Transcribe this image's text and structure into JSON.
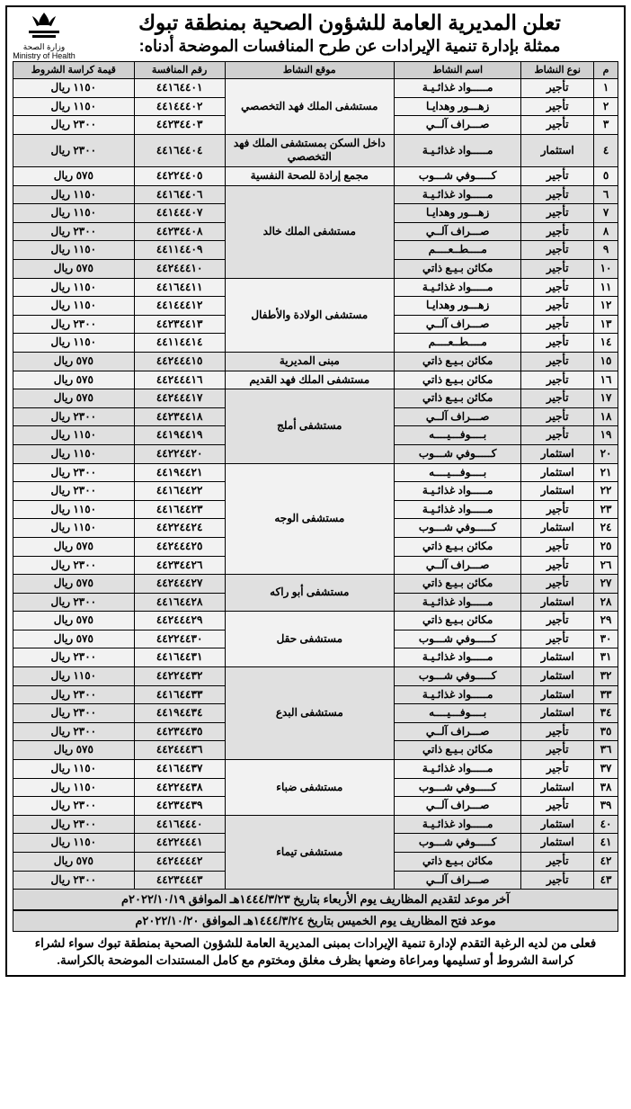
{
  "header": {
    "logo_ar": "وزارة الصحة",
    "logo_en": "Ministry of Health",
    "title1": "تعلن المديرية العامة للشؤون الصحية بمنطقة تبوك",
    "title2": "ممثلة بإدارة تنمية الإيرادات عن طرح المنافسات الموضحة أدناه:"
  },
  "columns": {
    "m": "م",
    "type": "نوع النشاط",
    "activity": "اسم النشاط",
    "location": "موقع النشاط",
    "ref": "رقم المنافسة",
    "value": "قيمة كراسة الشروط"
  },
  "colors": {
    "alt1": "#f2f2f2",
    "alt2": "#e0e0e0"
  },
  "rows": [
    {
      "m": "1",
      "type": "تأجير",
      "activity": "مـــــواد غذائـيـة",
      "ref": "٤٤١٦٤٤٠١",
      "value": "١١٥٠ ريال"
    },
    {
      "m": "2",
      "type": "تأجير",
      "activity": "زهـــور وهدايـا",
      "ref": "٤٤١٤٤٤٠٢",
      "value": "١١٥٠ ريال"
    },
    {
      "m": "3",
      "type": "تأجير",
      "activity": "صـــراف آلــي",
      "ref": "٤٤٢٣٤٤٠٣",
      "value": "٢٣٠٠ ريال"
    },
    {
      "m": "4",
      "type": "استثمار",
      "activity": "مـــــواد غذائـيـة",
      "ref": "٤٤١٦٤٤٠٤",
      "value": "٢٣٠٠ ريال"
    },
    {
      "m": "5",
      "type": "تأجير",
      "activity": "كـــــوفي شـــوب",
      "ref": "٤٤٢٢٤٤٠٥",
      "value": "٥٧٥ ريال"
    },
    {
      "m": "6",
      "type": "تأجير",
      "activity": "مـــــواد غذائـيـة",
      "ref": "٤٤١٦٤٤٠٦",
      "value": "١١٥٠ ريال"
    },
    {
      "m": "7",
      "type": "تأجير",
      "activity": "زهـــور وهدايـا",
      "ref": "٤٤١٤٤٤٠٧",
      "value": "١١٥٠ ريال"
    },
    {
      "m": "8",
      "type": "تأجير",
      "activity": "صـــراف آلــي",
      "ref": "٤٤٢٣٤٤٠٨",
      "value": "٢٣٠٠ ريال"
    },
    {
      "m": "9",
      "type": "تأجير",
      "activity": "مــــطــعــــم",
      "ref": "٤٤١١٤٤٠٩",
      "value": "١١٥٠ ريال"
    },
    {
      "m": "10",
      "type": "تأجير",
      "activity": "مكائن بـيـع ذاتي",
      "ref": "٤٤٢٤٤٤١٠",
      "value": "٥٧٥ ريال"
    },
    {
      "m": "11",
      "type": "تأجير",
      "activity": "مـــــواد غذائـيـة",
      "ref": "٤٤١٦٤٤١١",
      "value": "١١٥٠ ريال"
    },
    {
      "m": "12",
      "type": "تأجير",
      "activity": "زهـــور وهدايـا",
      "ref": "٤٤١٤٤٤١٢",
      "value": "١١٥٠ ريال"
    },
    {
      "m": "13",
      "type": "تأجير",
      "activity": "صـــراف آلــي",
      "ref": "٤٤٢٣٤٤١٣",
      "value": "٢٣٠٠ ريال"
    },
    {
      "m": "14",
      "type": "تأجير",
      "activity": "مــــطــعــــم",
      "ref": "٤٤١١٤٤١٤",
      "value": "١١٥٠ ريال"
    },
    {
      "m": "15",
      "type": "تأجير",
      "activity": "مكائن بـيـع ذاتي",
      "ref": "٤٤٢٤٤٤١٥",
      "value": "٥٧٥ ريال"
    },
    {
      "m": "16",
      "type": "تأجير",
      "activity": "مكائن بـيـع ذاتي",
      "ref": "٤٤٢٤٤٤١٦",
      "value": "٥٧٥ ريال"
    },
    {
      "m": "17",
      "type": "تأجير",
      "activity": "مكائن بـيـع ذاتي",
      "ref": "٤٤٢٤٤٤١٧",
      "value": "٥٧٥ ريال"
    },
    {
      "m": "18",
      "type": "تأجير",
      "activity": "صـــراف آلــي",
      "ref": "٤٤٢٣٤٤١٨",
      "value": "٢٣٠٠ ريال"
    },
    {
      "m": "19",
      "type": "تأجير",
      "activity": "بــــوفـــيــــه",
      "ref": "٤٤١٩٤٤١٩",
      "value": "١١٥٠ ريال"
    },
    {
      "m": "20",
      "type": "استثمار",
      "activity": "كـــــوفي شـــوب",
      "ref": "٤٤٢٢٤٤٢٠",
      "value": "١١٥٠ ريال"
    },
    {
      "m": "21",
      "type": "استثمار",
      "activity": "بــــوفـــيــــه",
      "ref": "٤٤١٩٤٤٢١",
      "value": "٢٣٠٠ ريال"
    },
    {
      "m": "22",
      "type": "استثمار",
      "activity": "مـــــواد غذائـيـة",
      "ref": "٤٤١٦٤٤٢٢",
      "value": "٢٣٠٠ ريال"
    },
    {
      "m": "23",
      "type": "تأجير",
      "activity": "مـــــواد غذائـيـة",
      "ref": "٤٤١٦٤٤٢٣",
      "value": "١١٥٠ ريال"
    },
    {
      "m": "24",
      "type": "استثمار",
      "activity": "كـــــوفي شـــوب",
      "ref": "٤٤٢٢٤٤٢٤",
      "value": "١١٥٠ ريال"
    },
    {
      "m": "25",
      "type": "تأجير",
      "activity": "مكائن بـيـع ذاتي",
      "ref": "٤٤٢٤٤٤٢٥",
      "value": "٥٧٥ ريال"
    },
    {
      "m": "26",
      "type": "تأجير",
      "activity": "صـــراف آلــي",
      "ref": "٤٤٢٣٤٤٢٦",
      "value": "٢٣٠٠ ريال"
    },
    {
      "m": "27",
      "type": "تأجير",
      "activity": "مكائن بـيـع ذاتي",
      "ref": "٤٤٢٤٤٤٢٧",
      "value": "٥٧٥ ريال"
    },
    {
      "m": "28",
      "type": "استثمار",
      "activity": "مـــــواد غذائـيـة",
      "ref": "٤٤١٦٤٤٢٨",
      "value": "٢٣٠٠ ريال"
    },
    {
      "m": "29",
      "type": "تأجير",
      "activity": "مكائن بـيـع ذاتي",
      "ref": "٤٤٢٤٤٤٢٩",
      "value": "٥٧٥ ريال"
    },
    {
      "m": "30",
      "type": "تأجير",
      "activity": "كـــــوفي شـــوب",
      "ref": "٤٤٢٢٤٤٣٠",
      "value": "٥٧٥ ريال"
    },
    {
      "m": "31",
      "type": "استثمار",
      "activity": "مـــــواد غذائـيـة",
      "ref": "٤٤١٦٤٤٣١",
      "value": "٢٣٠٠ ريال"
    },
    {
      "m": "32",
      "type": "استثمار",
      "activity": "كـــــوفي شـــوب",
      "ref": "٤٤٢٢٤٤٣٢",
      "value": "١١٥٠ ريال"
    },
    {
      "m": "33",
      "type": "استثمار",
      "activity": "مـــــواد غذائـيـة",
      "ref": "٤٤١٦٤٤٣٣",
      "value": "٢٣٠٠ ريال"
    },
    {
      "m": "34",
      "type": "استثمار",
      "activity": "بــــوفـــيــــه",
      "ref": "٤٤١٩٤٤٣٤",
      "value": "٢٣٠٠ ريال"
    },
    {
      "m": "35",
      "type": "تأجير",
      "activity": "صـــراف آلــي",
      "ref": "٤٤٢٣٤٤٣٥",
      "value": "٢٣٠٠ ريال"
    },
    {
      "m": "36",
      "type": "تأجير",
      "activity": "مكائن بـيـع ذاتي",
      "ref": "٤٤٢٤٤٤٣٦",
      "value": "٥٧٥ ريال"
    },
    {
      "m": "37",
      "type": "تأجير",
      "activity": "مـــــواد غذائـيـة",
      "ref": "٤٤١٦٤٤٣٧",
      "value": "١١٥٠ ريال"
    },
    {
      "m": "38",
      "type": "استثمار",
      "activity": "كـــــوفي شـــوب",
      "ref": "٤٤٢٢٤٤٣٨",
      "value": "١١٥٠ ريال"
    },
    {
      "m": "39",
      "type": "تأجير",
      "activity": "صـــراف آلــي",
      "ref": "٤٤٢٣٤٤٣٩",
      "value": "٢٣٠٠ ريال"
    },
    {
      "m": "40",
      "type": "استثمار",
      "activity": "مـــــواد غذائـيـة",
      "ref": "٤٤١٦٤٤٤٠",
      "value": "٢٣٠٠ ريال"
    },
    {
      "m": "41",
      "type": "استثمار",
      "activity": "كـــــوفي شـــوب",
      "ref": "٤٤٢٢٤٤٤١",
      "value": "١١٥٠ ريال"
    },
    {
      "m": "42",
      "type": "تأجير",
      "activity": "مكائن بـيـع ذاتي",
      "ref": "٤٤٢٤٤٤٤٢",
      "value": "٥٧٥ ريال"
    },
    {
      "m": "43",
      "type": "تأجير",
      "activity": "صـــراف آلــي",
      "ref": "٤٤٢٣٤٤٤٣",
      "value": "٢٣٠٠ ريال"
    }
  ],
  "locations": [
    {
      "start": 0,
      "span": 3,
      "text": "مستشفى الملك فهد التخصصي",
      "shade": "alt1"
    },
    {
      "start": 3,
      "span": 1,
      "text": "داخل السكن بمستشفى الملك فهد التخصصي",
      "shade": "alt2"
    },
    {
      "start": 4,
      "span": 1,
      "text": "مجمع إرادة للصحة النفسية",
      "shade": "alt1"
    },
    {
      "start": 5,
      "span": 5,
      "text": "مستشفى الملك خالد",
      "shade": "alt2"
    },
    {
      "start": 10,
      "span": 4,
      "text": "مستشفى الولادة والأطفال",
      "shade": "alt1"
    },
    {
      "start": 14,
      "span": 1,
      "text": "مبنى المديرية",
      "shade": "alt2"
    },
    {
      "start": 15,
      "span": 1,
      "text": "مستشفى الملك فهد القديم",
      "shade": "alt1"
    },
    {
      "start": 16,
      "span": 4,
      "text": "مستشفى أملج",
      "shade": "alt2"
    },
    {
      "start": 20,
      "span": 6,
      "text": "مستشفى الوجه",
      "shade": "alt1"
    },
    {
      "start": 26,
      "span": 2,
      "text": "مستشفى أبو راكه",
      "shade": "alt2"
    },
    {
      "start": 28,
      "span": 3,
      "text": "مستشفى حقل",
      "shade": "alt1"
    },
    {
      "start": 31,
      "span": 5,
      "text": "مستشفى البدع",
      "shade": "alt2"
    },
    {
      "start": 36,
      "span": 3,
      "text": "مستشفى ضباء",
      "shade": "alt1"
    },
    {
      "start": 39,
      "span": 4,
      "text": "مستشفى تيماء",
      "shade": "alt2"
    }
  ],
  "footer": {
    "line1": "آخر موعد لتقديم المظاريف يوم الأربعاء بتاريخ ١٤٤٤/٣/٢٣هـ الموافق ٢٠٢٢/١٠/١٩م",
    "line2": "موعد فتح المظاريف يوم الخميس بتاريخ ١٤٤٤/٣/٢٤هـ الموافق ٢٠٢٢/١٠/٢٠م",
    "note": "فعلى من لديه الرغبة التقدم لإدارة تنمية الإيرادات بمبنى المديرية العامة للشؤون الصحية بمنطقة تبوك سواء لشراء كراسة الشروط أو تسليمها ومراعاة وضعها بظرف مغلق ومختوم مع كامل المستندات الموضحة بالكراسة."
  }
}
